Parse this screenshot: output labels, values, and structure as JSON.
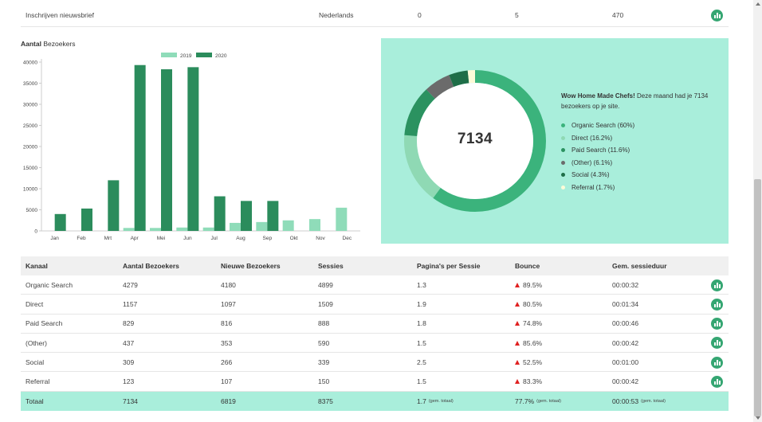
{
  "top_row": {
    "name": "Inschrijven nieuwsbrief",
    "language": "Nederlands",
    "v1": "0",
    "v2": "5",
    "v3": "470"
  },
  "bar_chart": {
    "title_bold": "Aantal",
    "title_rest": " Bezoekers"
  },
  "chart_data": {
    "type": "bar",
    "categories": [
      "Jan",
      "Feb",
      "Mrt",
      "Apr",
      "Mei",
      "Jun",
      "Jul",
      "Aug",
      "Sep",
      "Okt",
      "Nov",
      "Dec"
    ],
    "series": [
      {
        "name": "2019",
        "color": "#8fdcb9",
        "values": [
          0,
          0,
          0,
          700,
          700,
          800,
          800,
          1900,
          2100,
          2500,
          2800,
          5500
        ]
      },
      {
        "name": "2020",
        "color": "#2b8c5c",
        "values": [
          4000,
          5300,
          12000,
          39300,
          38300,
          38800,
          8200,
          7100,
          7100,
          0,
          0,
          0
        ]
      }
    ],
    "yticks": [
      0,
      5000,
      10000,
      15000,
      20000,
      25000,
      30000,
      35000,
      40000
    ],
    "ylim": [
      0,
      40000
    ],
    "legend": "top"
  },
  "donut": {
    "total": "7134",
    "heading_bold": "Wow Home Made Chefs!",
    "heading_rest": " Deze maand had je 7134 bezoekers op je site.",
    "segments": [
      {
        "label": "Organic Search (60%)",
        "value": 60,
        "color": "#3bb37c"
      },
      {
        "label": "Direct (16.2%)",
        "value": 16.2,
        "color": "#8fd9b4"
      },
      {
        "label": "Paid Search (11.6%)",
        "value": 11.6,
        "color": "#2b9260"
      },
      {
        "label": "(Other) (6.1%)",
        "value": 6.1,
        "color": "#6b6b6b"
      },
      {
        "label": "Social (4.3%)",
        "value": 4.3,
        "color": "#1f6e48"
      },
      {
        "label": "Referral (1.7%)",
        "value": 1.7,
        "color": "#fdfbd8"
      }
    ]
  },
  "table": {
    "headers": [
      "Kanaal",
      "Aantal Bezoekers",
      "Nieuwe Bezoekers",
      "Sessies",
      "Pagina's per Sessie",
      "Bounce",
      "Gem. sessieduur"
    ],
    "rows": [
      {
        "kanaal": "Organic Search",
        "bezoekers": "4279",
        "nieuwe": "4180",
        "sessies": "4899",
        "pps": "1.3",
        "bounce": "89.5%",
        "duur": "00:00:32"
      },
      {
        "kanaal": "Direct",
        "bezoekers": "1157",
        "nieuwe": "1097",
        "sessies": "1509",
        "pps": "1.9",
        "bounce": "80.5%",
        "duur": "00:01:34"
      },
      {
        "kanaal": "Paid Search",
        "bezoekers": "829",
        "nieuwe": "816",
        "sessies": "888",
        "pps": "1.8",
        "bounce": "74.8%",
        "duur": "00:00:46"
      },
      {
        "kanaal": "(Other)",
        "bezoekers": "437",
        "nieuwe": "353",
        "sessies": "590",
        "pps": "1.5",
        "bounce": "85.6%",
        "duur": "00:00:42"
      },
      {
        "kanaal": "Social",
        "bezoekers": "309",
        "nieuwe": "266",
        "sessies": "339",
        "pps": "2.5",
        "bounce": "52.5%",
        "duur": "00:01:00"
      },
      {
        "kanaal": "Referral",
        "bezoekers": "123",
        "nieuwe": "107",
        "sessies": "150",
        "pps": "1.5",
        "bounce": "83.3%",
        "duur": "00:00:42"
      }
    ],
    "total": {
      "kanaal": "Totaal",
      "bezoekers": "7134",
      "nieuwe": "6819",
      "sessies": "8375",
      "pps": "1.7",
      "pps_note": "(gem. totaal)",
      "bounce": "77.7%",
      "bounce_note": "(gem. totaal)",
      "duur": "00:00:53",
      "duur_note": "(gem. totaal)"
    }
  },
  "colors": {
    "accent": "#35a672",
    "panel_bg": "#a9eedb",
    "bounce_up": "#e02020"
  }
}
